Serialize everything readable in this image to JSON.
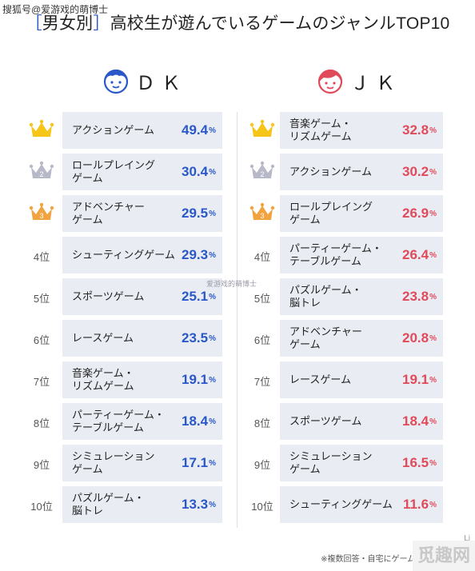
{
  "watermark_top": "搜狐号@爱游戏的萌博士",
  "title": {
    "open_bracket": "［",
    "tag": "男女別",
    "close_bracket": "］",
    "text": "高校生が遊んでいるゲームのジャンルTOP10"
  },
  "dk": {
    "label": "ＤＫ"
  },
  "jk": {
    "label": "ＪＫ"
  },
  "watermark_mid": "爱游戏的萌博士",
  "footnote": "※複数回答・自宅にゲーム機があるJK (n=4",
  "footnote_brand": "Li",
  "corner_watermark": "觅趣网",
  "colors": {
    "dk_accent": "#2a58c8",
    "jk_accent": "#e14a5a",
    "gold": "#f5c518",
    "silver": "#b7b9c9",
    "bronze": "#f1a340",
    "row_bg": "#e9edf3"
  },
  "chart_data": [
    {
      "type": "table",
      "title": "ＤＫ",
      "unit": "%",
      "rows": [
        {
          "rank": "1",
          "icon": "gold-crown",
          "name": "アクションゲーム",
          "value": 49.4,
          "value_text": "49.4"
        },
        {
          "rank": "2",
          "icon": "silver-crown",
          "name": "ロールプレイング\nゲーム",
          "value": 30.4,
          "value_text": "30.4"
        },
        {
          "rank": "3",
          "icon": "bronze-crown",
          "name": "アドベンチャー\nゲーム",
          "value": 29.5,
          "value_text": "29.5"
        },
        {
          "rank": "4位",
          "icon": "",
          "name": "シューティングゲーム",
          "value": 29.3,
          "value_text": "29.3"
        },
        {
          "rank": "5位",
          "icon": "",
          "name": "スポーツゲーム",
          "value": 25.1,
          "value_text": "25.1"
        },
        {
          "rank": "6位",
          "icon": "",
          "name": "レースゲーム",
          "value": 23.5,
          "value_text": "23.5"
        },
        {
          "rank": "7位",
          "icon": "",
          "name": "音楽ゲーム・\nリズムゲーム",
          "value": 19.1,
          "value_text": "19.1"
        },
        {
          "rank": "8位",
          "icon": "",
          "name": "パーティーゲーム・\nテーブルゲーム",
          "value": 18.4,
          "value_text": "18.4"
        },
        {
          "rank": "9位",
          "icon": "",
          "name": "シミュレーション\nゲーム",
          "value": 17.1,
          "value_text": "17.1"
        },
        {
          "rank": "10位",
          "icon": "",
          "name": "パズルゲーム・\n脳トレ",
          "value": 13.3,
          "value_text": "13.3"
        }
      ]
    },
    {
      "type": "table",
      "title": "ＪＫ",
      "unit": "%",
      "rows": [
        {
          "rank": "1",
          "icon": "gold-crown",
          "name": "音楽ゲーム・\nリズムゲーム",
          "value": 32.8,
          "value_text": "32.8"
        },
        {
          "rank": "2",
          "icon": "silver-crown",
          "name": "アクションゲーム",
          "value": 30.2,
          "value_text": "30.2"
        },
        {
          "rank": "3",
          "icon": "bronze-crown",
          "name": "ロールプレイング\nゲーム",
          "value": 26.9,
          "value_text": "26.9"
        },
        {
          "rank": "4位",
          "icon": "",
          "name": "パーティーゲーム・\nテーブルゲーム",
          "value": 26.4,
          "value_text": "26.4"
        },
        {
          "rank": "5位",
          "icon": "",
          "name": "パズルゲーム・\n脳トレ",
          "value": 23.8,
          "value_text": "23.8"
        },
        {
          "rank": "6位",
          "icon": "",
          "name": "アドベンチャー\nゲーム",
          "value": 20.8,
          "value_text": "20.8"
        },
        {
          "rank": "7位",
          "icon": "",
          "name": "レースゲーム",
          "value": 19.1,
          "value_text": "19.1"
        },
        {
          "rank": "8位",
          "icon": "",
          "name": "スポーツゲーム",
          "value": 18.4,
          "value_text": "18.4"
        },
        {
          "rank": "9位",
          "icon": "",
          "name": "シミュレーション\nゲーム",
          "value": 16.5,
          "value_text": "16.5"
        },
        {
          "rank": "10位",
          "icon": "",
          "name": "シューティングゲーム",
          "value": 11.6,
          "value_text": "11.6"
        }
      ]
    }
  ]
}
